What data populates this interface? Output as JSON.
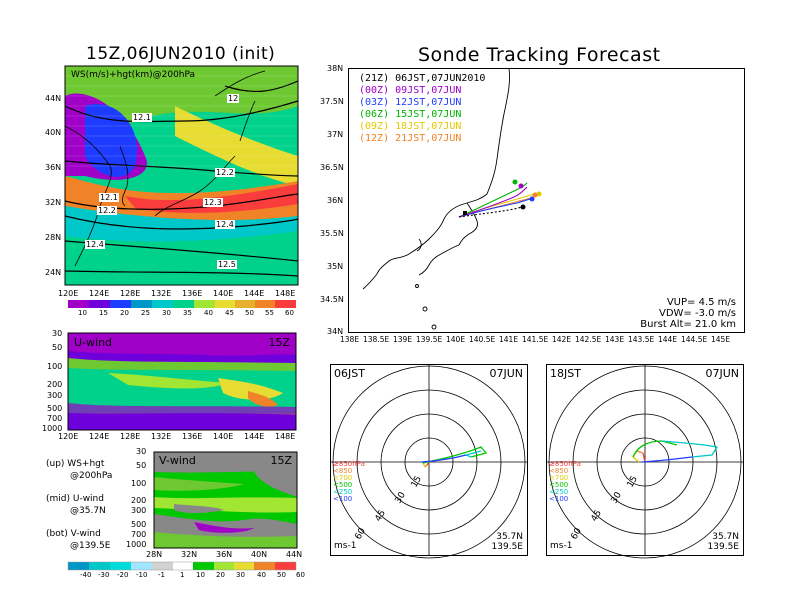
{
  "left_title": "15Z,06JUN2010 (init)",
  "right_title": "Sonde Tracking Forecast",
  "top_map": {
    "label": "WS(m/s)+hgt(km)@200hPa",
    "lat_ticks": [
      "44N",
      "40N",
      "36N",
      "32N",
      "28N",
      "24N"
    ],
    "lon_ticks": [
      "120E",
      "124E",
      "128E",
      "132E",
      "136E",
      "140E",
      "144E",
      "148E"
    ],
    "contour_labels": [
      "12",
      "12.1",
      "12.2",
      "12.1",
      "12.2",
      "12.3",
      "12.4",
      "12.4",
      "12.5"
    ],
    "colorbar_ticks": [
      "10",
      "15",
      "20",
      "25",
      "30",
      "35",
      "40",
      "45",
      "50",
      "55",
      "60"
    ],
    "colors": [
      "#a000c8",
      "#6e00dc",
      "#1e3cff",
      "#0096c8",
      "#00c8c8",
      "#00d28c",
      "#a0e632",
      "#e6dc32",
      "#e6af2d",
      "#f08228",
      "#fa3c3c"
    ]
  },
  "u_panel": {
    "label": "U-wind",
    "time": "15Z",
    "y_ticks": [
      "30",
      "50",
      "100",
      "200",
      "300",
      "500",
      "700",
      "1000"
    ],
    "x_ticks": [
      "120E",
      "124E",
      "128E",
      "132E",
      "136E",
      "140E",
      "144E",
      "148E"
    ]
  },
  "v_panel": {
    "label": "V-wind",
    "time": "15Z",
    "y_ticks": [
      "30",
      "50",
      "100",
      "200",
      "300",
      "500",
      "700",
      "1000"
    ],
    "x_ticks": [
      "28N",
      "32N",
      "36N",
      "40N",
      "44N"
    ]
  },
  "legend_notes": [
    {
      "a": "(up) WS+hgt",
      "b": "@200hPa"
    },
    {
      "a": "(mid) U-wind",
      "b": "@35.7N"
    },
    {
      "a": "(bot) V-wind",
      "b": "@139.5E"
    }
  ],
  "bottom_colorbar_ticks": [
    "-40",
    "-30",
    "-20",
    "-10",
    "-1",
    "1",
    "10",
    "20",
    "30",
    "40",
    "50",
    "60"
  ],
  "bottom_colorbar_colors": [
    "#0096c8",
    "#00c8c8",
    "#00dcdc",
    "#a0e6ff",
    "#d2d2d2",
    "#ffffff",
    "#00c800",
    "#a0e632",
    "#e6dc32",
    "#f08228",
    "#fa3c3c"
  ],
  "track_map": {
    "lat_ticks": [
      "38N",
      "37.5N",
      "37N",
      "36.5N",
      "36N",
      "35.5N",
      "35N",
      "34.5N",
      "34N"
    ],
    "lon_ticks": [
      "138E",
      "138.5E",
      "139E",
      "139.5E",
      "140E",
      "140.5E",
      "141E",
      "141.5E",
      "142E",
      "142.5E",
      "143E",
      "143.5E",
      "144E",
      "144.5E",
      "145E"
    ],
    "legend": [
      {
        "z": "(21Z)",
        "jst": "06JST,07JUN2010",
        "color": "#000000"
      },
      {
        "z": "(00Z)",
        "jst": "09JST,07JUN",
        "color": "#a000c8"
      },
      {
        "z": "(03Z)",
        "jst": "12JST,07JUN",
        "color": "#1e3cff"
      },
      {
        "z": "(06Z)",
        "jst": "15JST,07JUN",
        "color": "#00b400"
      },
      {
        "z": "(09Z)",
        "jst": "18JST,07JUN",
        "color": "#e6c800"
      },
      {
        "z": "(12Z)",
        "jst": "21JST,07JUN",
        "color": "#f08228"
      }
    ],
    "vup": "VUP= 4.5 m/s",
    "vdw": "VDW= -3.0 m/s",
    "burst": "Burst Alt= 21.0 km"
  },
  "hodo1": {
    "time": "06JST",
    "date": "07JUN",
    "lat": "35.7N",
    "lon": "139.5E",
    "unit": "ms-1",
    "rings": [
      "15",
      "30",
      "45",
      "60"
    ],
    "levels": [
      {
        "t": "≥850hPa",
        "c": "#fa3c3c"
      },
      {
        "t": "<850",
        "c": "#f08228"
      },
      {
        "t": "<700",
        "c": "#e6c800"
      },
      {
        "t": "<500",
        "c": "#00c800"
      },
      {
        "t": "<250",
        "c": "#00c8c8"
      },
      {
        "t": "<100",
        "c": "#1e3cff"
      }
    ]
  },
  "hodo2": {
    "time": "18JST",
    "date": "07JUN",
    "lat": "35.7N",
    "lon": "139.5E",
    "unit": "ms-1",
    "rings": [
      "15",
      "30",
      "45",
      "60"
    ],
    "levels": [
      {
        "t": "≥850hPa",
        "c": "#fa3c3c"
      },
      {
        "t": "<850",
        "c": "#f08228"
      },
      {
        "t": "<700",
        "c": "#e6c800"
      },
      {
        "t": "<500",
        "c": "#00c800"
      },
      {
        "t": "<250",
        "c": "#00c8c8"
      },
      {
        "t": "<100",
        "c": "#1e3cff"
      }
    ]
  }
}
